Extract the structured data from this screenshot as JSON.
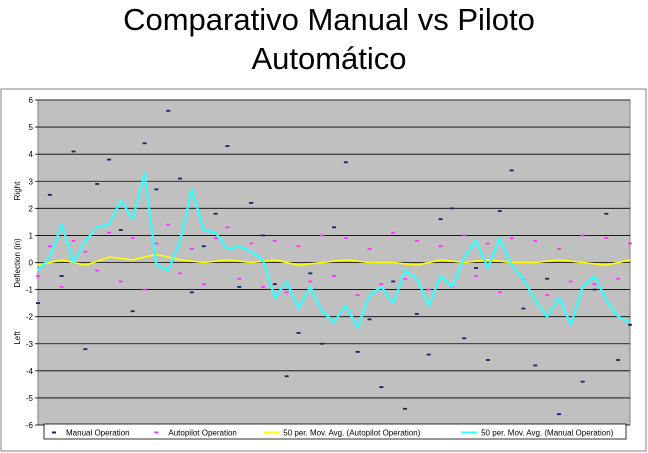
{
  "slide": {
    "title_line1": "Comparativo Manual vs Piloto",
    "title_line2": "Automático"
  },
  "chart_data": {
    "type": "scatter",
    "title": "Comparativo Manual vs Piloto Automático",
    "ylabel": "Deflection (in)",
    "ylabel_top": "Right",
    "ylabel_bottom": "Left",
    "ylim": [
      -6,
      6
    ],
    "yticks": [
      6,
      5,
      4,
      3,
      2,
      1,
      0,
      -1,
      -2,
      -3,
      -4,
      -5,
      -6
    ],
    "grid": true,
    "plot_background": "#c0c0c0",
    "legend_position": "bottom",
    "series": [
      {
        "name": "Manual Operation",
        "kind": "points",
        "color": "#1f1f6e",
        "approx_range": [
          -5.7,
          5.6
        ],
        "x": [
          0,
          2,
          4,
          6,
          8,
          10,
          12,
          14,
          16,
          18,
          20,
          22,
          24,
          26,
          28,
          30,
          32,
          34,
          36,
          38,
          40,
          42,
          44,
          46,
          48,
          50,
          52,
          54,
          56,
          58,
          60,
          62,
          64,
          66,
          68,
          70,
          72,
          74,
          76,
          78,
          80,
          82,
          84,
          86,
          88,
          90,
          92,
          94,
          96,
          98,
          100
        ],
        "y": [
          -1.5,
          2.5,
          -0.5,
          4.1,
          -3.2,
          2.9,
          3.8,
          1.2,
          -1.8,
          4.4,
          2.7,
          5.6,
          3.1,
          -1.1,
          0.6,
          1.8,
          4.3,
          -0.9,
          2.2,
          1.0,
          -0.8,
          -4.2,
          -2.6,
          -0.4,
          -3.0,
          1.3,
          3.7,
          -3.3,
          -2.1,
          -4.6,
          -0.7,
          -5.4,
          -1.9,
          -3.4,
          1.6,
          2.0,
          -2.8,
          -0.2,
          -3.6,
          1.9,
          3.4,
          -1.7,
          -3.8,
          -0.6,
          -5.6,
          -2.2,
          -4.4,
          -1.0,
          1.8,
          -3.6,
          -2.3
        ]
      },
      {
        "name": "Autopilot Operation",
        "kind": "points",
        "color": "#ff33ff",
        "approx_range": [
          -1.3,
          1.5
        ],
        "x": [
          0,
          2,
          4,
          6,
          8,
          10,
          12,
          14,
          16,
          18,
          20,
          22,
          24,
          26,
          28,
          30,
          32,
          34,
          36,
          38,
          40,
          42,
          44,
          46,
          48,
          50,
          52,
          54,
          56,
          58,
          60,
          62,
          64,
          66,
          68,
          70,
          72,
          74,
          76,
          78,
          80,
          82,
          84,
          86,
          88,
          90,
          92,
          94,
          96,
          98,
          100
        ],
        "y": [
          -0.5,
          0.6,
          -0.9,
          0.8,
          0.4,
          -0.3,
          1.1,
          -0.7,
          0.9,
          -1.0,
          0.7,
          1.4,
          -0.4,
          0.5,
          -0.8,
          0.9,
          1.3,
          -0.6,
          0.7,
          -0.9,
          0.8,
          -1.1,
          0.6,
          -0.7,
          1.0,
          -0.5,
          0.9,
          -1.2,
          0.5,
          -0.8,
          1.1,
          -0.6,
          0.8,
          -1.0,
          0.6,
          -0.9,
          1.0,
          -0.5,
          0.7,
          -1.1,
          0.9,
          -0.6,
          0.8,
          -1.2,
          0.5,
          -0.7,
          1.0,
          -0.8,
          0.9,
          -0.6,
          0.7
        ]
      },
      {
        "name": "50 per. Mov. Avg. (Autopilot Operation)",
        "kind": "line",
        "color": "#ffff00",
        "x": [
          0,
          4,
          8,
          12,
          16,
          20,
          24,
          28,
          32,
          36,
          40,
          44,
          48,
          52,
          56,
          60,
          64,
          68,
          72,
          76,
          80,
          84,
          88,
          92,
          96,
          100
        ],
        "y": [
          -0.1,
          0.1,
          -0.1,
          0.2,
          0.1,
          0.3,
          0.1,
          0.0,
          0.1,
          0.0,
          0.1,
          -0.1,
          0.0,
          0.1,
          0.0,
          0.0,
          -0.1,
          0.1,
          0.0,
          0.1,
          0.0,
          0.0,
          0.1,
          0.0,
          -0.1,
          0.1
        ]
      },
      {
        "name": "50 per. Mov. Avg. (Manual Operation)",
        "kind": "line",
        "color": "#33ffff",
        "x": [
          0,
          2,
          4,
          6,
          8,
          10,
          12,
          14,
          16,
          18,
          20,
          22,
          24,
          26,
          28,
          30,
          32,
          34,
          36,
          38,
          40,
          42,
          44,
          46,
          48,
          50,
          52,
          54,
          56,
          58,
          60,
          62,
          64,
          66,
          68,
          70,
          72,
          74,
          76,
          78,
          80,
          82,
          84,
          86,
          88,
          90,
          92,
          94,
          96,
          98,
          100
        ],
        "y": [
          -0.3,
          0.2,
          1.4,
          0.0,
          0.8,
          1.3,
          1.4,
          2.3,
          1.6,
          3.3,
          -0.1,
          -0.3,
          0.8,
          2.7,
          1.2,
          1.1,
          0.5,
          0.6,
          0.4,
          0.1,
          -1.3,
          -0.7,
          -1.7,
          -0.9,
          -1.8,
          -2.2,
          -1.6,
          -2.4,
          -1.2,
          -0.9,
          -1.5,
          -0.3,
          -0.6,
          -1.6,
          -0.5,
          -0.9,
          0.2,
          0.8,
          -0.2,
          0.9,
          -0.1,
          -0.6,
          -1.4,
          -2.0,
          -1.3,
          -2.3,
          -0.9,
          -0.5,
          -1.4,
          -2.0,
          -2.2
        ]
      }
    ]
  }
}
